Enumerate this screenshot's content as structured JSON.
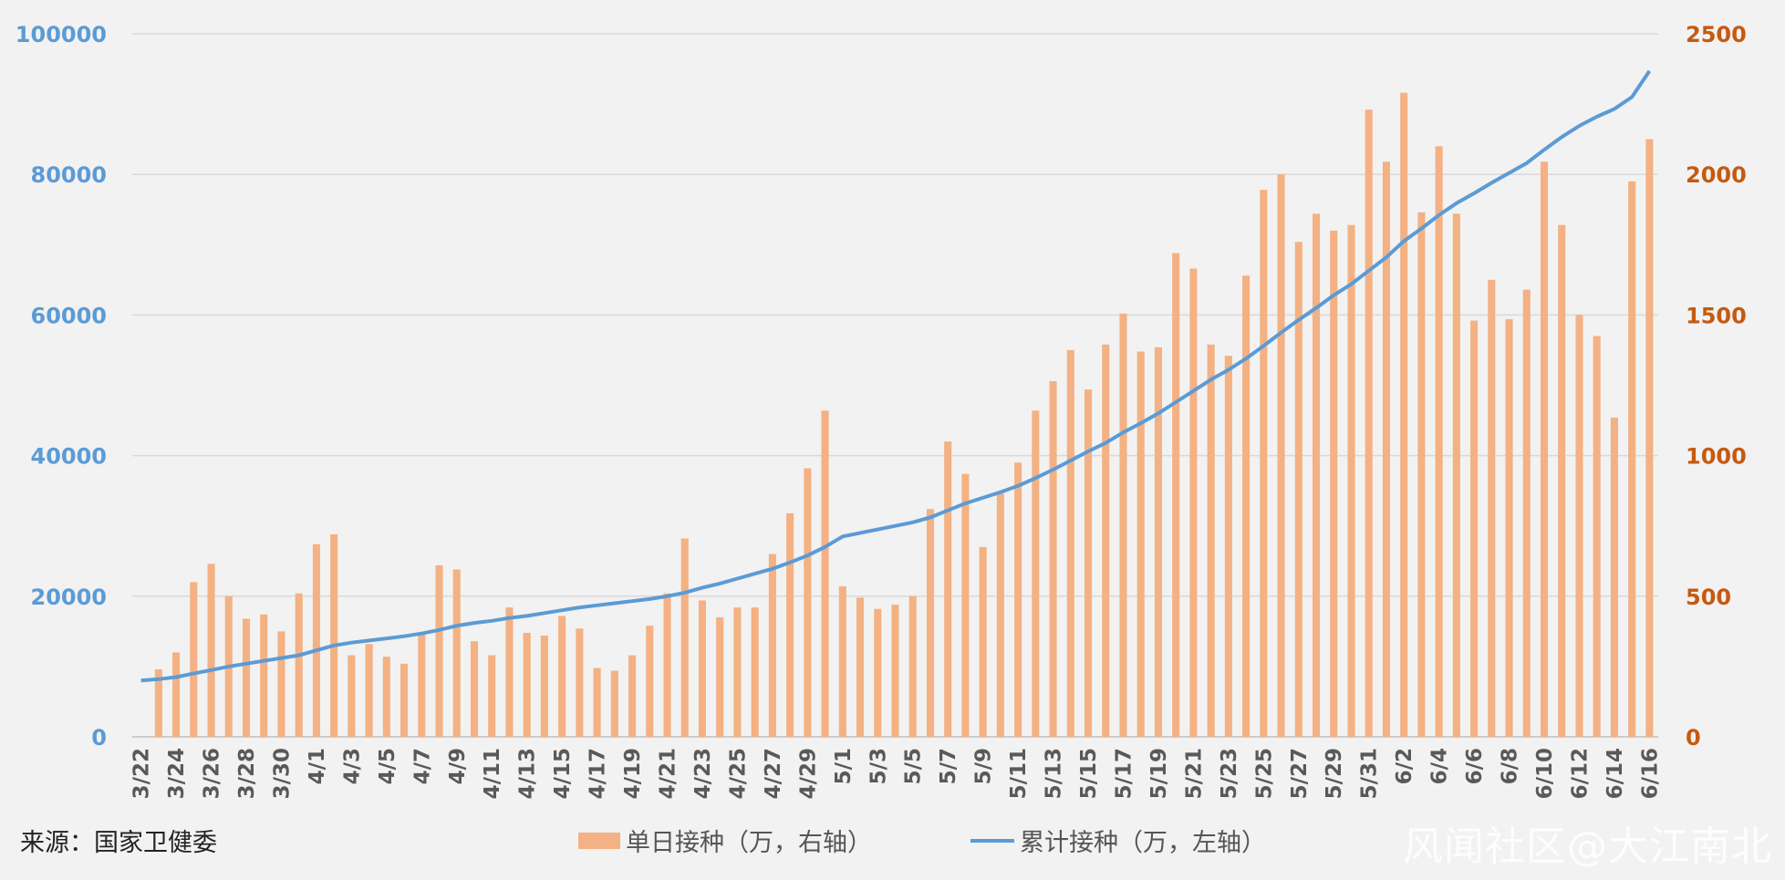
{
  "source": "来源：国家卫健委",
  "legend": {
    "bar_label": "单日接种（万，右轴）",
    "line_label": "累计接种（万，左轴）"
  },
  "watermark": "风闻社区@大江南北",
  "colors": {
    "bar": "#f4b183",
    "line": "#5b9bd5",
    "left_axis": "#5b9bd5",
    "right_axis": "#c55a11",
    "grid": "#d9d9d9"
  },
  "chart_data": {
    "type": "bar+line",
    "title": "",
    "xlabel": "",
    "ylabel_left": "",
    "ylabel_right": "",
    "left_axis": {
      "min": 0,
      "max": 100000,
      "ticks": [
        "0",
        "20000",
        "40000",
        "60000",
        "80000",
        "100000"
      ]
    },
    "right_axis": {
      "min": 0,
      "max": 2500,
      "ticks": [
        "0",
        "500",
        "1000",
        "1500",
        "2000",
        "2500"
      ]
    },
    "grid": true,
    "legend_position": "bottom",
    "x_tick_labels": [
      "3/22",
      "3/24",
      "3/26",
      "3/28",
      "3/30",
      "4/1",
      "4/3",
      "4/5",
      "4/7",
      "4/9",
      "4/11",
      "4/13",
      "4/15",
      "4/17",
      "4/19",
      "4/21",
      "4/23",
      "4/25",
      "4/27",
      "4/29",
      "5/1",
      "5/3",
      "5/5",
      "5/7",
      "5/9",
      "5/11",
      "5/13",
      "5/15",
      "5/17",
      "5/19",
      "5/21",
      "5/23",
      "5/25",
      "5/27",
      "5/29",
      "5/31",
      "6/2",
      "6/4",
      "6/6",
      "6/8",
      "6/10",
      "6/12",
      "6/14",
      "6/16"
    ],
    "dates": [
      "3/22",
      "3/23",
      "3/24",
      "3/25",
      "3/26",
      "3/27",
      "3/28",
      "3/29",
      "3/30",
      "3/31",
      "4/1",
      "4/2",
      "4/3",
      "4/4",
      "4/5",
      "4/6",
      "4/7",
      "4/8",
      "4/9",
      "4/10",
      "4/11",
      "4/12",
      "4/13",
      "4/14",
      "4/15",
      "4/16",
      "4/17",
      "4/18",
      "4/19",
      "4/20",
      "4/21",
      "4/22",
      "4/23",
      "4/24",
      "4/25",
      "4/26",
      "4/27",
      "4/28",
      "4/29",
      "4/30",
      "5/1",
      "5/2",
      "5/3",
      "5/4",
      "5/5",
      "5/6",
      "5/7",
      "5/8",
      "5/9",
      "5/10",
      "5/11",
      "5/12",
      "5/13",
      "5/14",
      "5/15",
      "5/16",
      "5/17",
      "5/18",
      "5/19",
      "5/20",
      "5/21",
      "5/22",
      "5/23",
      "5/24",
      "5/25",
      "5/26",
      "5/27",
      "5/28",
      "5/29",
      "5/30",
      "5/31",
      "6/1",
      "6/2",
      "6/3",
      "6/4",
      "6/5",
      "6/6",
      "6/7",
      "6/8",
      "6/9",
      "6/10",
      "6/11",
      "6/12",
      "6/13",
      "6/14",
      "6/15",
      "6/16"
    ],
    "series": [
      {
        "name": "单日接种（万，右轴）",
        "type": "bar",
        "axis": "right",
        "values": [
          0,
          240,
          300,
          550,
          615,
          500,
          420,
          435,
          375,
          510,
          685,
          720,
          290,
          330,
          285,
          260,
          370,
          610,
          595,
          340,
          290,
          460,
          370,
          360,
          430,
          385,
          245,
          235,
          290,
          395,
          510,
          705,
          485,
          425,
          460,
          460,
          650,
          795,
          955,
          1160,
          535,
          495,
          455,
          470,
          500,
          810,
          1050,
          935,
          675,
          865,
          975,
          1160,
          1265,
          1375,
          1235,
          1395,
          1505,
          1370,
          1385,
          1720,
          1665,
          1395,
          1355,
          1640,
          1945,
          2000,
          1760,
          1860,
          1800,
          1820,
          2230,
          2045,
          2290,
          1865,
          2100,
          1860,
          1480,
          1625,
          1485,
          1590,
          2045,
          1820,
          1500,
          1425,
          1135,
          1975,
          2125
        ]
      },
      {
        "name": "累计接种（万，左轴）",
        "type": "line",
        "axis": "left",
        "values": [
          8000,
          8200,
          8500,
          9000,
          9500,
          10000,
          10400,
          10800,
          11200,
          11600,
          12300,
          13000,
          13400,
          13700,
          14000,
          14300,
          14700,
          15200,
          15800,
          16200,
          16500,
          16900,
          17200,
          17600,
          18000,
          18400,
          18700,
          19000,
          19300,
          19600,
          20000,
          20500,
          21200,
          21800,
          22500,
          23200,
          23900,
          24800,
          25800,
          27000,
          28500,
          29000,
          29500,
          30000,
          30500,
          31200,
          32200,
          33200,
          34000,
          34800,
          35700,
          36800,
          38000,
          39300,
          40600,
          41800,
          43300,
          44600,
          46000,
          47600,
          49200,
          50800,
          52200,
          53800,
          55600,
          57500,
          59300,
          61000,
          62800,
          64400,
          66300,
          68200,
          70500,
          72300,
          74200,
          75900,
          77300,
          78800,
          80200,
          81600,
          83500,
          85300,
          86900,
          88200,
          89300,
          91000,
          94700
        ]
      }
    ]
  }
}
